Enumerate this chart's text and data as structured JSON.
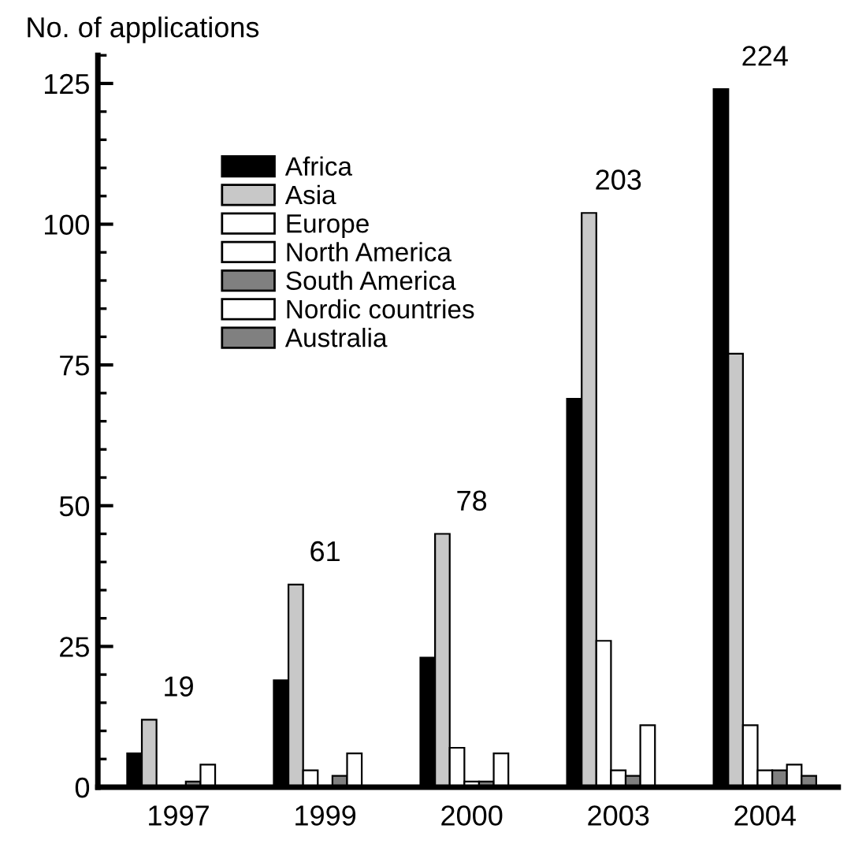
{
  "chart_data": {
    "type": "bar",
    "ylabel": "No. of applications",
    "categories": [
      "1997",
      "1999",
      "2000",
      "2003",
      "2004"
    ],
    "series": [
      {
        "name": "Africa",
        "color": "#000000",
        "values": [
          6,
          19,
          23,
          69,
          124
        ]
      },
      {
        "name": "Asia",
        "color": "#c8c8c8",
        "values": [
          12,
          36,
          45,
          102,
          77
        ]
      },
      {
        "name": "Europe",
        "color": "#ffffff",
        "values": [
          0,
          3,
          7,
          26,
          11
        ]
      },
      {
        "name": "North America",
        "color": "#ffffff",
        "values": [
          0,
          0,
          1,
          3,
          3
        ]
      },
      {
        "name": "South America",
        "color": "#808080",
        "values": [
          1,
          2,
          1,
          2,
          3
        ]
      },
      {
        "name": "Nordic countries",
        "color": "#ffffff",
        "values": [
          4,
          6,
          6,
          11,
          4
        ]
      },
      {
        "name": "Australia",
        "color": "#808080",
        "values": [
          0,
          0,
          0,
          0,
          2
        ]
      }
    ],
    "annotations": [
      "19",
      "61",
      "78",
      "203",
      "224"
    ],
    "ylim": [
      0,
      130
    ],
    "yticks": [
      0,
      25,
      50,
      75,
      100,
      125
    ],
    "grid": false,
    "legend": "top left"
  }
}
